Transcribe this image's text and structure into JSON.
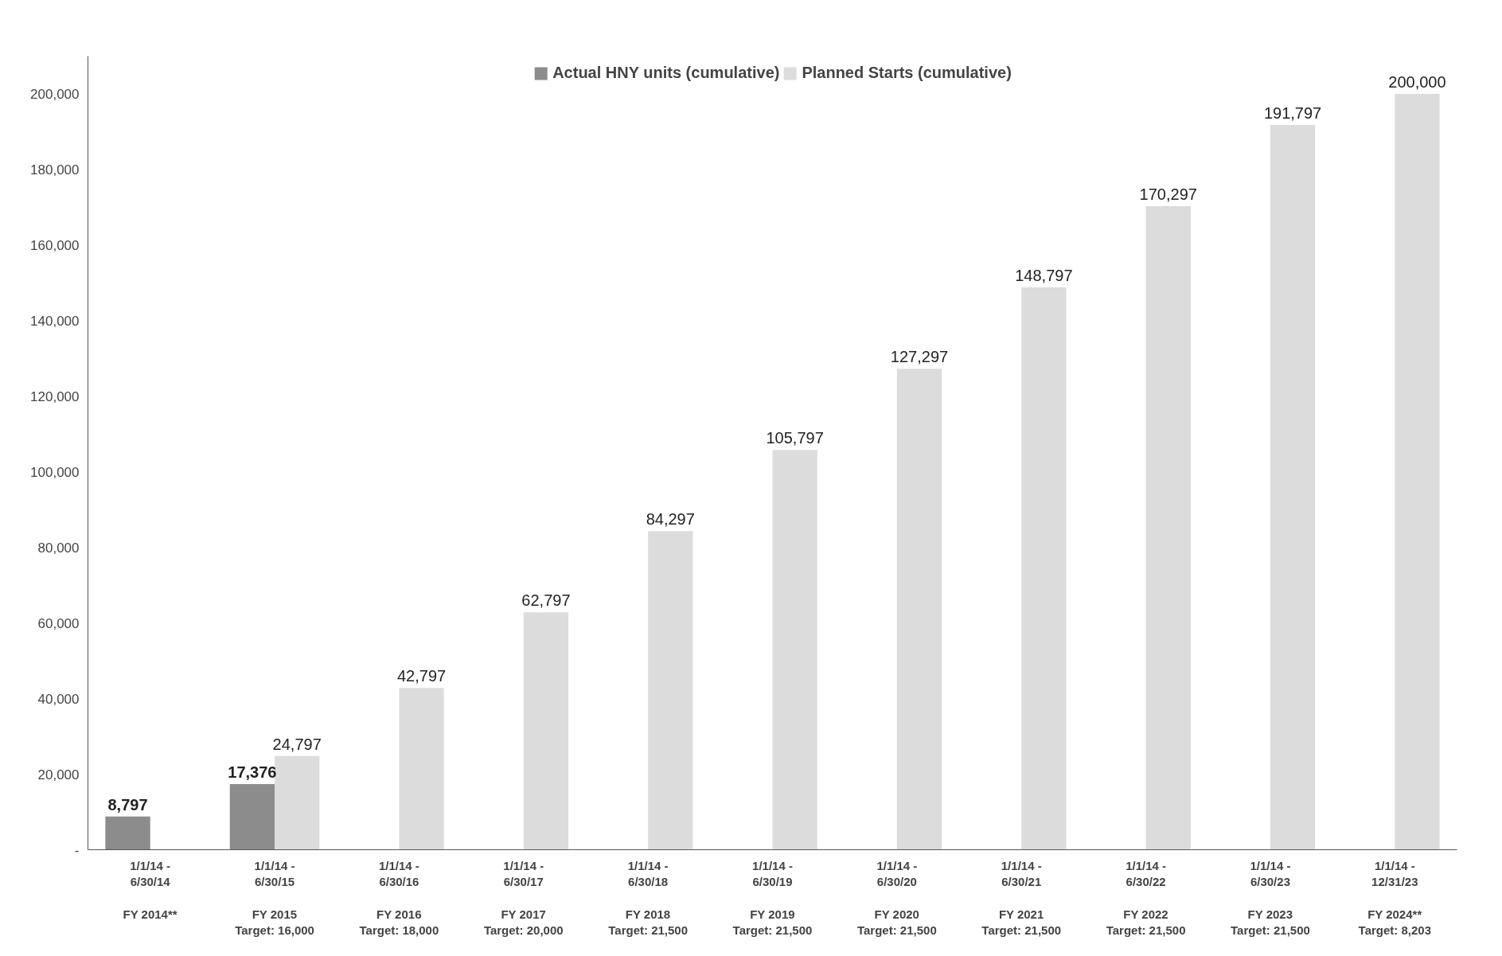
{
  "chart_data": {
    "type": "bar",
    "categories": [
      "1/1/14 -\n6/30/14\n\nFY 2014**",
      "1/1/14 -\n6/30/15\n\nFY 2015\nTarget: 16,000",
      "1/1/14 -\n6/30/16\n\nFY 2016\nTarget: 18,000",
      "1/1/14 -\n6/30/17\n\nFY 2017\nTarget: 20,000",
      "1/1/14 -\n6/30/18\n\nFY 2018\nTarget: 21,500",
      "1/1/14 -\n6/30/19\n\nFY 2019\nTarget: 21,500",
      "1/1/14 -\n6/30/20\n\nFY 2020\nTarget: 21,500",
      "1/1/14 -\n6/30/21\n\nFY 2021\nTarget: 21,500",
      "1/1/14 -\n6/30/22\n\nFY 2022\nTarget: 21,500",
      "1/1/14 -\n6/30/23\n\nFY 2023\nTarget: 21,500",
      "1/1/14 -\n12/31/23\n\nFY 2024**\nTarget: 8,203"
    ],
    "series": [
      {
        "name": "Actual HNY units (cumulative)",
        "color": "#8c8c8c",
        "values": [
          8797,
          17376,
          null,
          null,
          null,
          null,
          null,
          null,
          null,
          null,
          null
        ],
        "value_labels": [
          "8,797",
          "17,376",
          null,
          null,
          null,
          null,
          null,
          null,
          null,
          null,
          null
        ]
      },
      {
        "name": "Planned Starts (cumulative)",
        "color": "#dcdcdc",
        "values": [
          null,
          24797,
          42797,
          62797,
          84297,
          105797,
          127297,
          148797,
          170297,
          191797,
          200000
        ],
        "value_labels": [
          null,
          "24,797",
          "42,797",
          "62,797",
          "84,297",
          "105,797",
          "127,297",
          "148,797",
          "170,297",
          "191,797",
          "200,000"
        ]
      }
    ],
    "ylim": [
      0,
      210000
    ],
    "yticks": [
      {
        "value": 0,
        "label": "-"
      },
      {
        "value": 20000,
        "label": "20,000"
      },
      {
        "value": 40000,
        "label": "40,000"
      },
      {
        "value": 60000,
        "label": "60,000"
      },
      {
        "value": 80000,
        "label": "80,000"
      },
      {
        "value": 100000,
        "label": "100,000"
      },
      {
        "value": 120000,
        "label": "120,000"
      },
      {
        "value": 140000,
        "label": "140,000"
      },
      {
        "value": 160000,
        "label": "160,000"
      },
      {
        "value": 180000,
        "label": "180,000"
      },
      {
        "value": 200000,
        "label": "200,000"
      }
    ],
    "grid": false,
    "legend": "top"
  }
}
